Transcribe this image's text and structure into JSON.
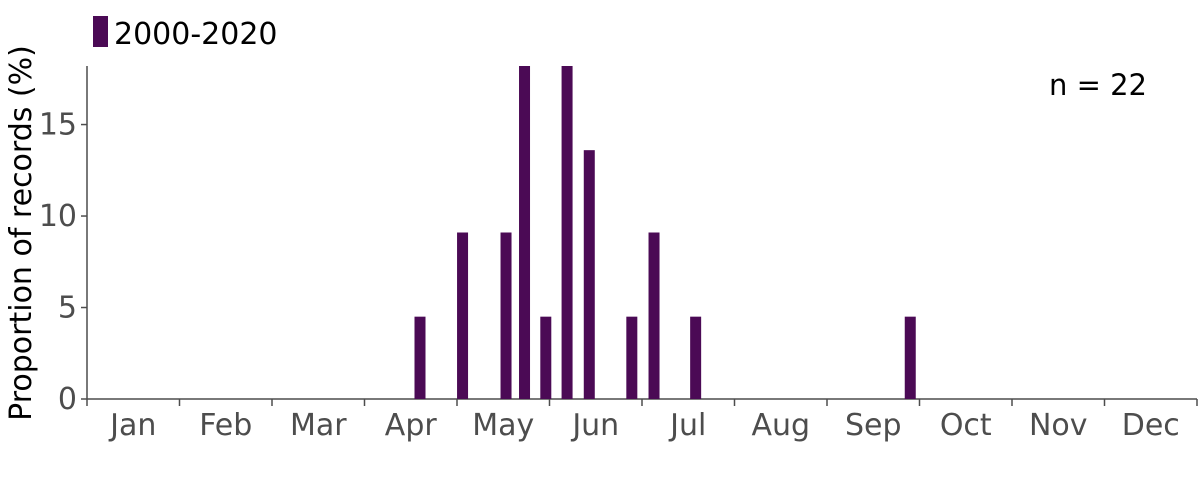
{
  "colors": {
    "bar": "#4b0a55",
    "axis": "#4d4d4d",
    "text": "#000000"
  },
  "chart_data": {
    "type": "bar",
    "legend": {
      "entries": [
        "2000-2020"
      ],
      "placement": "top-left"
    },
    "ylabel": "Proportion of records (%)",
    "xlabel": "",
    "annotation": "n = 22",
    "xlim": [
      0,
      12
    ],
    "ylim": [
      0,
      18.2
    ],
    "yticks": [
      0,
      5,
      10,
      15
    ],
    "xtick_labels": [
      "Jan",
      "Feb",
      "Mar",
      "Apr",
      "May",
      "Jun",
      "Jul",
      "Aug",
      "Sep",
      "Oct",
      "Nov",
      "Dec"
    ],
    "series": [
      {
        "name": "2000-2020",
        "points": [
          {
            "x": 3.6,
            "y": 4.5
          },
          {
            "x": 4.06,
            "y": 9.1
          },
          {
            "x": 4.53,
            "y": 9.1
          },
          {
            "x": 4.73,
            "y": 18.2
          },
          {
            "x": 4.96,
            "y": 4.5
          },
          {
            "x": 5.19,
            "y": 18.2
          },
          {
            "x": 5.43,
            "y": 13.6
          },
          {
            "x": 5.89,
            "y": 4.5
          },
          {
            "x": 6.13,
            "y": 9.1
          },
          {
            "x": 6.58,
            "y": 4.5
          },
          {
            "x": 8.9,
            "y": 4.5
          }
        ]
      }
    ]
  }
}
